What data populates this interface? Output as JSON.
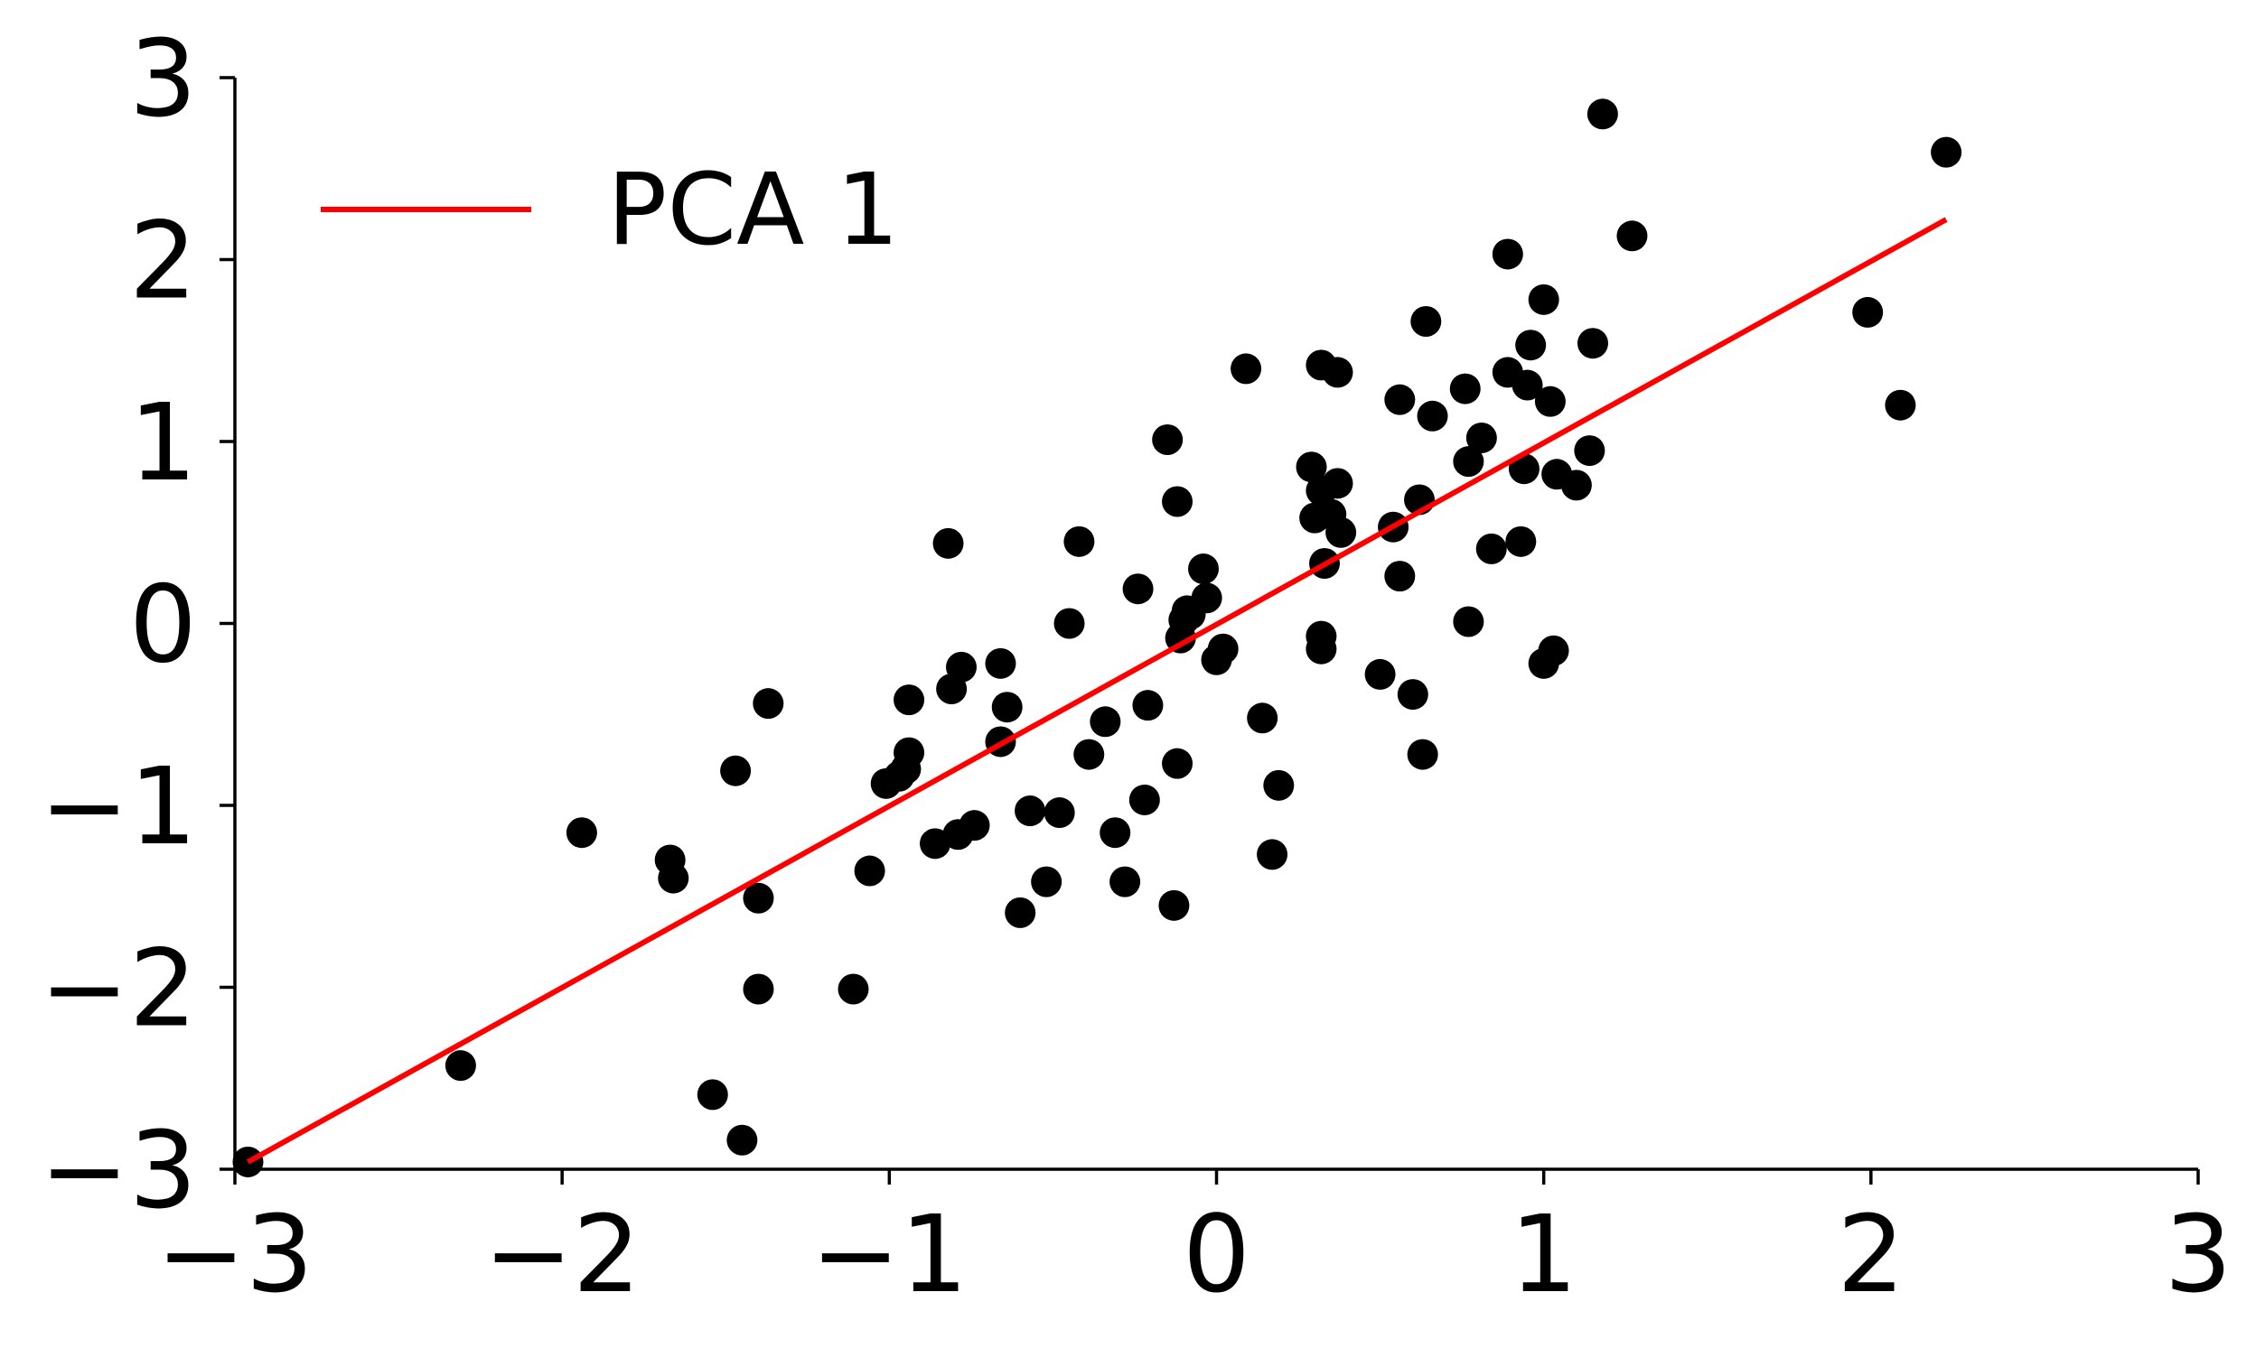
{
  "chart_data": {
    "type": "scatter",
    "title": "",
    "xlabel": "",
    "ylabel": "",
    "xlim": [
      -3,
      3
    ],
    "ylim": [
      -3,
      3
    ],
    "grid": false,
    "legend": {
      "placement": "top-left"
    },
    "x_ticks": [
      {
        "value": -3,
        "label": "−3"
      },
      {
        "value": -2,
        "label": "−2"
      },
      {
        "value": -1,
        "label": "−1"
      },
      {
        "value": 0,
        "label": "0"
      },
      {
        "value": 1,
        "label": "1"
      },
      {
        "value": 2,
        "label": "2"
      },
      {
        "value": 3,
        "label": "3"
      }
    ],
    "y_ticks": [
      {
        "value": -3,
        "label": "−3"
      },
      {
        "value": -2,
        "label": "−2"
      },
      {
        "value": -1,
        "label": "−1"
      },
      {
        "value": 0,
        "label": "0"
      },
      {
        "value": 1,
        "label": "1"
      },
      {
        "value": 2,
        "label": "2"
      },
      {
        "value": 3,
        "label": "3"
      }
    ],
    "points": {
      "color": "#000000",
      "data": [
        [
          -2.96,
          -2.96
        ],
        [
          -2.31,
          -2.43
        ],
        [
          -1.94,
          -1.15
        ],
        [
          -1.67,
          -1.3
        ],
        [
          -1.66,
          -1.4
        ],
        [
          -1.54,
          -2.59
        ],
        [
          -1.47,
          -0.81
        ],
        [
          -1.45,
          -2.84
        ],
        [
          -1.4,
          -1.51
        ],
        [
          -1.4,
          -2.01
        ],
        [
          -1.37,
          -0.44
        ],
        [
          -1.11,
          -2.01
        ],
        [
          -1.06,
          -1.36
        ],
        [
          -1.01,
          -0.88
        ],
        [
          -0.97,
          -0.84
        ],
        [
          -0.95,
          -0.8
        ],
        [
          -0.94,
          -0.42
        ],
        [
          -0.94,
          -0.71
        ],
        [
          -0.86,
          -1.21
        ],
        [
          -0.82,
          0.44
        ],
        [
          -0.81,
          -0.36
        ],
        [
          -0.79,
          -1.16
        ],
        [
          -0.78,
          -0.24
        ],
        [
          -0.74,
          -1.11
        ],
        [
          -0.66,
          -0.22
        ],
        [
          -0.66,
          -0.65
        ],
        [
          -0.64,
          -0.46
        ],
        [
          -0.6,
          -1.59
        ],
        [
          -0.57,
          -1.03
        ],
        [
          -0.52,
          -1.42
        ],
        [
          -0.48,
          -1.04
        ],
        [
          -0.45,
          0.0
        ],
        [
          -0.42,
          0.45
        ],
        [
          -0.39,
          -0.72
        ],
        [
          -0.34,
          -0.54
        ],
        [
          -0.31,
          -1.15
        ],
        [
          -0.28,
          -1.42
        ],
        [
          -0.24,
          0.19
        ],
        [
          -0.22,
          -0.97
        ],
        [
          -0.21,
          -0.45
        ],
        [
          -0.15,
          1.01
        ],
        [
          -0.13,
          -1.55
        ],
        [
          -0.12,
          -0.77
        ],
        [
          -0.12,
          0.67
        ],
        [
          -0.11,
          -0.08
        ],
        [
          -0.1,
          0.02
        ],
        [
          -0.09,
          0.07
        ],
        [
          -0.08,
          0.05
        ],
        [
          -0.04,
          0.3
        ],
        [
          -0.03,
          0.14
        ],
        [
          0.0,
          -0.2
        ],
        [
          0.02,
          -0.14
        ],
        [
          0.09,
          1.4
        ],
        [
          0.14,
          -0.52
        ],
        [
          0.17,
          -1.27
        ],
        [
          0.19,
          -0.89
        ],
        [
          0.29,
          0.86
        ],
        [
          0.3,
          0.58
        ],
        [
          0.32,
          0.73
        ],
        [
          0.32,
          1.42
        ],
        [
          0.32,
          -0.07
        ],
        [
          0.32,
          -0.14
        ],
        [
          0.33,
          0.33
        ],
        [
          0.35,
          0.6
        ],
        [
          0.37,
          0.77
        ],
        [
          0.37,
          1.38
        ],
        [
          0.38,
          0.5
        ],
        [
          0.5,
          -0.28
        ],
        [
          0.54,
          0.53
        ],
        [
          0.56,
          1.23
        ],
        [
          0.56,
          0.26
        ],
        [
          0.6,
          -0.39
        ],
        [
          0.62,
          0.68
        ],
        [
          0.63,
          -0.72
        ],
        [
          0.64,
          1.66
        ],
        [
          0.66,
          1.14
        ],
        [
          0.76,
          1.29
        ],
        [
          0.77,
          0.89
        ],
        [
          0.77,
          0.01
        ],
        [
          0.81,
          1.02
        ],
        [
          0.84,
          0.41
        ],
        [
          0.89,
          2.03
        ],
        [
          0.89,
          1.38
        ],
        [
          0.93,
          0.45
        ],
        [
          0.94,
          0.85
        ],
        [
          0.95,
          1.31
        ],
        [
          0.96,
          1.53
        ],
        [
          1.0,
          -0.22
        ],
        [
          1.0,
          1.78
        ],
        [
          1.02,
          1.22
        ],
        [
          1.03,
          -0.15
        ],
        [
          1.04,
          0.82
        ],
        [
          1.1,
          0.76
        ],
        [
          1.14,
          0.95
        ],
        [
          1.15,
          1.54
        ],
        [
          1.18,
          2.8
        ],
        [
          1.27,
          2.13
        ],
        [
          1.99,
          1.71
        ],
        [
          2.09,
          1.2
        ],
        [
          2.23,
          2.59
        ]
      ]
    },
    "series": [
      {
        "name": "PCA 1",
        "type": "line",
        "color": "#ff0000",
        "x": [
          -2.96,
          2.23
        ],
        "y": [
          -2.96,
          2.22
        ]
      }
    ]
  }
}
